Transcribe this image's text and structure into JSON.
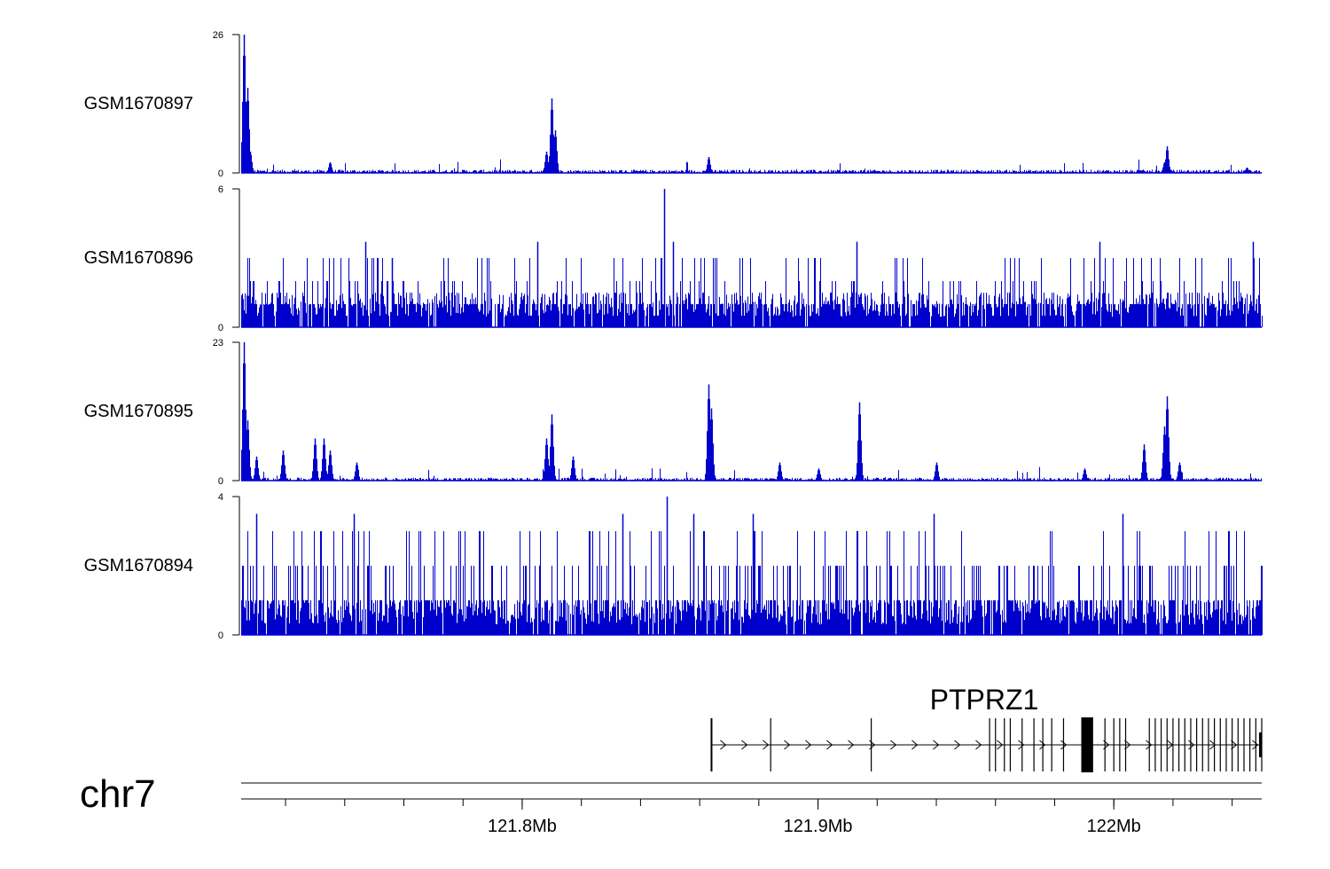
{
  "chart_data": {
    "type": "area",
    "title": "",
    "chromosome": "chr7",
    "x_range_mb": [
      121.705,
      122.05
    ],
    "color": "#0000cc",
    "tracks": [
      {
        "name": "GSM1670897",
        "ymax_label": "26",
        "ymin_label": "0",
        "ylim": [
          0,
          26
        ],
        "peaks": [
          {
            "pos": 121.706,
            "value": 26
          },
          {
            "pos": 121.707,
            "value": 16
          },
          {
            "pos": 121.708,
            "value": 4
          },
          {
            "pos": 121.735,
            "value": 2
          },
          {
            "pos": 121.808,
            "value": 4
          },
          {
            "pos": 121.81,
            "value": 14
          },
          {
            "pos": 121.811,
            "value": 8
          },
          {
            "pos": 121.863,
            "value": 3
          },
          {
            "pos": 122.017,
            "value": 2
          },
          {
            "pos": 122.018,
            "value": 5
          },
          {
            "pos": 122.045,
            "value": 1
          }
        ],
        "background": 0.5
      },
      {
        "name": "GSM1670896",
        "ymax_label": "6",
        "ymin_label": "0",
        "ylim": [
          0,
          6
        ],
        "peaks": [
          {
            "pos": 121.848,
            "value": 6
          },
          {
            "pos": 121.747,
            "value": 3.7
          },
          {
            "pos": 121.756,
            "value": 3
          },
          {
            "pos": 121.805,
            "value": 3.7
          },
          {
            "pos": 121.851,
            "value": 3.7
          },
          {
            "pos": 121.913,
            "value": 3.7
          },
          {
            "pos": 121.995,
            "value": 3.7
          },
          {
            "pos": 122.047,
            "value": 3.7
          }
        ],
        "background": 1.5
      },
      {
        "name": "GSM1670895",
        "ymax_label": "23",
        "ymin_label": "0",
        "ylim": [
          0,
          23
        ],
        "peaks": [
          {
            "pos": 121.706,
            "value": 23
          },
          {
            "pos": 121.707,
            "value": 10
          },
          {
            "pos": 121.71,
            "value": 4
          },
          {
            "pos": 121.719,
            "value": 5
          },
          {
            "pos": 121.73,
            "value": 7
          },
          {
            "pos": 121.733,
            "value": 7
          },
          {
            "pos": 121.735,
            "value": 5
          },
          {
            "pos": 121.744,
            "value": 3
          },
          {
            "pos": 121.808,
            "value": 7
          },
          {
            "pos": 121.81,
            "value": 11
          },
          {
            "pos": 121.817,
            "value": 4
          },
          {
            "pos": 121.863,
            "value": 16
          },
          {
            "pos": 121.864,
            "value": 12
          },
          {
            "pos": 121.887,
            "value": 3
          },
          {
            "pos": 121.9,
            "value": 2
          },
          {
            "pos": 121.914,
            "value": 13
          },
          {
            "pos": 121.94,
            "value": 3
          },
          {
            "pos": 121.99,
            "value": 2
          },
          {
            "pos": 122.01,
            "value": 6
          },
          {
            "pos": 122.017,
            "value": 9
          },
          {
            "pos": 122.018,
            "value": 14
          },
          {
            "pos": 122.022,
            "value": 3
          }
        ],
        "background": 0.4
      },
      {
        "name": "GSM1670894",
        "ymax_label": "4",
        "ymin_label": "0",
        "ylim": [
          0,
          4
        ],
        "peaks": [
          {
            "pos": 121.849,
            "value": 4
          },
          {
            "pos": 121.743,
            "value": 3.5
          },
          {
            "pos": 121.834,
            "value": 3.5
          },
          {
            "pos": 121.858,
            "value": 3.5
          },
          {
            "pos": 121.878,
            "value": 3.5
          },
          {
            "pos": 121.939,
            "value": 3.5
          },
          {
            "pos": 122.003,
            "value": 3.5
          },
          {
            "pos": 121.71,
            "value": 3.5
          }
        ],
        "background": 1
      }
    ],
    "gene": {
      "name": "PTPRZ1",
      "start_mb": 121.864,
      "end_mb": 122.05,
      "strand": "+",
      "exons_mb": [
        121.864,
        121.884,
        121.918,
        121.958,
        121.96,
        121.963,
        121.965,
        121.969,
        121.973,
        121.976,
        121.979,
        121.983,
        121.997,
        122.0,
        122.002,
        122.004,
        122.012,
        122.014,
        122.016,
        122.018,
        122.02,
        122.022,
        122.024,
        122.026,
        122.028,
        122.03,
        122.032,
        122.034,
        122.036,
        122.038,
        122.04,
        122.042,
        122.044,
        122.046,
        122.048,
        122.05
      ],
      "big_exon_mb": [
        121.989,
        121.993
      ]
    },
    "axis": {
      "major_ticks_mb": [
        121.8,
        121.9,
        122.0
      ],
      "major_tick_labels": [
        "121.8Mb",
        "121.9Mb",
        "122Mb"
      ],
      "minor_tick_step_mb": 0.02
    }
  }
}
